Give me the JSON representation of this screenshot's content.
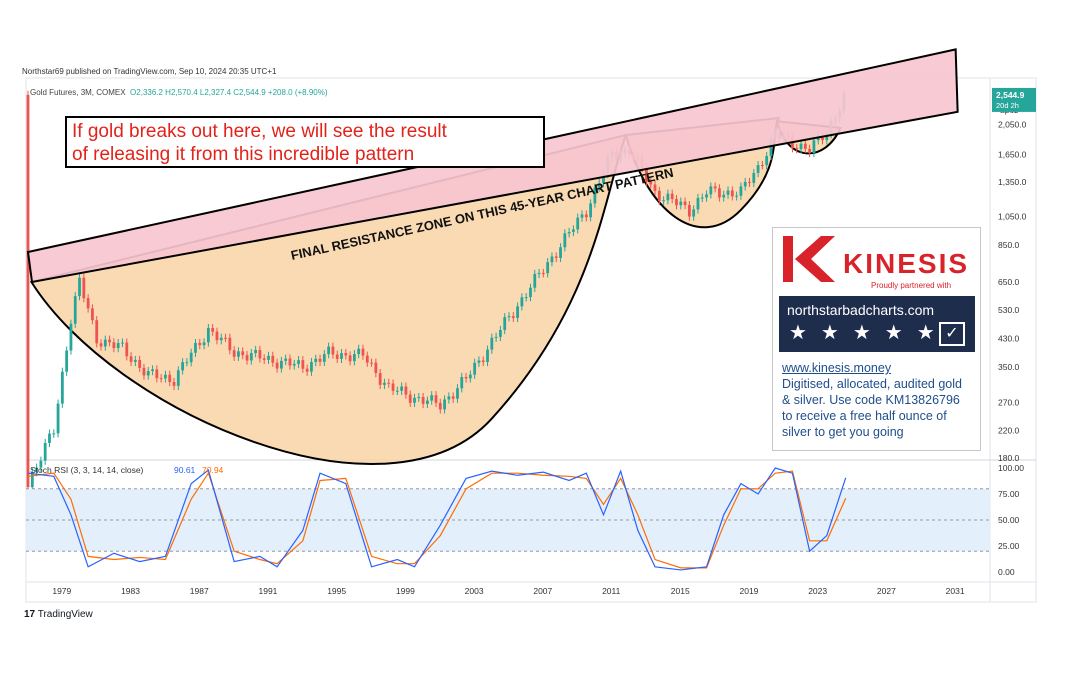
{
  "header": {
    "published": "Northstar69 published on TradingView.com, Sep 10, 2024 20:35 UTC+1",
    "symbol": "Gold Futures, 3M, COMEX",
    "ohlc": "O2,336.2  H2,570.4  L2,327.4  C2,544.9  +208.0 (+8.90%)"
  },
  "footer": {
    "logo_text": "TradingView"
  },
  "sponsor": {
    "brand": "KINESIS",
    "tagline": "Proudly partnered with",
    "site_badge": "northstarbadcharts.com",
    "lines": [
      "www.kinesis.money",
      "Digitised, allocated, audited gold",
      "& silver. Use code KM13826796",
      "to receive a free half ounce of",
      "silver to get you going"
    ]
  },
  "colors": {
    "up": "#26a69a",
    "down": "#ef5350",
    "cup_fill": "#f9d4a4",
    "resistance_fill": "#f7c6cf",
    "rsi_k": "#2962ff",
    "rsi_d": "#ff6d00",
    "rsi_band": "#e3effb",
    "brand_red": "#d8232a",
    "badge_navy": "#1f2d4d"
  },
  "chart_data": [
    {
      "type": "candlestick",
      "scale": "log",
      "currency": "USD",
      "right_axis_top_labels": [
        "USD",
        "apoz"
      ],
      "last_price_label": "2,544.9",
      "countdown_label": "20d 2h",
      "y_ticks": [
        "2,050.0",
        "1,650.0",
        "1,350.0",
        "1,050.0",
        "850.0",
        "650.0",
        "530.0",
        "430.0",
        "350.0",
        "270.0",
        "220.0",
        "180.0"
      ],
      "x_ticks": [
        "1979",
        "1983",
        "1987",
        "1991",
        "1995",
        "1999",
        "2003",
        "2007",
        "2011",
        "2015",
        "2019",
        "2023",
        "2027",
        "2031"
      ],
      "approx_close_path": [
        {
          "year": 1977.0,
          "close": 150
        },
        {
          "year": 1978.5,
          "close": 220
        },
        {
          "year": 1979.5,
          "close": 500
        },
        {
          "year": 1980.0,
          "close": 650
        },
        {
          "year": 1981.0,
          "close": 430
        },
        {
          "year": 1982.5,
          "close": 400
        },
        {
          "year": 1984.0,
          "close": 330
        },
        {
          "year": 1985.5,
          "close": 320
        },
        {
          "year": 1987.5,
          "close": 460
        },
        {
          "year": 1989.0,
          "close": 390
        },
        {
          "year": 1991.0,
          "close": 370
        },
        {
          "year": 1993.0,
          "close": 350
        },
        {
          "year": 1994.5,
          "close": 385
        },
        {
          "year": 1996.5,
          "close": 380
        },
        {
          "year": 1998.0,
          "close": 300
        },
        {
          "year": 1999.5,
          "close": 280
        },
        {
          "year": 2001.0,
          "close": 265
        },
        {
          "year": 2002.5,
          "close": 320
        },
        {
          "year": 2004.0,
          "close": 420
        },
        {
          "year": 2006.0,
          "close": 600
        },
        {
          "year": 2008.0,
          "close": 850
        },
        {
          "year": 2009.5,
          "close": 1100
        },
        {
          "year": 2011.0,
          "close": 1650
        },
        {
          "year": 2012.0,
          "close": 1700
        },
        {
          "year": 2013.5,
          "close": 1250
        },
        {
          "year": 2015.5,
          "close": 1100
        },
        {
          "year": 2016.5,
          "close": 1250
        },
        {
          "year": 2018.5,
          "close": 1250
        },
        {
          "year": 2019.5,
          "close": 1500
        },
        {
          "year": 2020.5,
          "close": 1900
        },
        {
          "year": 2021.5,
          "close": 1800
        },
        {
          "year": 2022.5,
          "close": 1700
        },
        {
          "year": 2023.5,
          "close": 1950
        },
        {
          "year": 2024.6,
          "close": 2545
        }
      ],
      "annotations": {
        "resistance_label": "FINAL RESISTANCE ZONE ON THIS 45-YEAR CHART PATTERN",
        "callout_line1": "If gold breaks out here, we will see the result",
        "callout_line2": "of releasing it from this incredible pattern"
      }
    },
    {
      "type": "line",
      "title": "Stoch RSI (3, 3, 14, 14, close)",
      "k_value": "90.61",
      "d_value": "70.94",
      "y_ticks": [
        "100.00",
        "75.00",
        "50.00",
        "25.00",
        "0.00"
      ],
      "ylim": [
        0,
        100
      ],
      "band": [
        20,
        80
      ],
      "k_series": [
        {
          "year": 1977.0,
          "k": 95
        },
        {
          "year": 1978.5,
          "k": 92
        },
        {
          "year": 1979.5,
          "k": 55
        },
        {
          "year": 1980.5,
          "k": 5
        },
        {
          "year": 1982.0,
          "k": 18
        },
        {
          "year": 1983.5,
          "k": 10
        },
        {
          "year": 1985.0,
          "k": 15
        },
        {
          "year": 1986.5,
          "k": 85
        },
        {
          "year": 1987.5,
          "k": 98
        },
        {
          "year": 1989.0,
          "k": 10
        },
        {
          "year": 1990.5,
          "k": 15
        },
        {
          "year": 1991.5,
          "k": 5
        },
        {
          "year": 1993.0,
          "k": 40
        },
        {
          "year": 1994.0,
          "k": 95
        },
        {
          "year": 1995.5,
          "k": 85
        },
        {
          "year": 1997.0,
          "k": 5
        },
        {
          "year": 1998.5,
          "k": 12
        },
        {
          "year": 1999.5,
          "k": 5
        },
        {
          "year": 2001.0,
          "k": 45
        },
        {
          "year": 2002.5,
          "k": 90
        },
        {
          "year": 2004.0,
          "k": 97
        },
        {
          "year": 2005.5,
          "k": 93
        },
        {
          "year": 2007.0,
          "k": 96
        },
        {
          "year": 2008.5,
          "k": 88
        },
        {
          "year": 2009.5,
          "k": 95
        },
        {
          "year": 2010.5,
          "k": 55
        },
        {
          "year": 2011.5,
          "k": 97
        },
        {
          "year": 2012.5,
          "k": 40
        },
        {
          "year": 2013.5,
          "k": 5
        },
        {
          "year": 2015.0,
          "k": 2
        },
        {
          "year": 2016.5,
          "k": 5
        },
        {
          "year": 2017.5,
          "k": 55
        },
        {
          "year": 2018.5,
          "k": 85
        },
        {
          "year": 2019.5,
          "k": 75
        },
        {
          "year": 2020.5,
          "k": 100
        },
        {
          "year": 2021.5,
          "k": 95
        },
        {
          "year": 2022.5,
          "k": 20
        },
        {
          "year": 2023.5,
          "k": 35
        },
        {
          "year": 2024.6,
          "k": 90.61
        }
      ],
      "d_series": [
        {
          "year": 1977.0,
          "d": 92
        },
        {
          "year": 1978.5,
          "d": 95
        },
        {
          "year": 1979.5,
          "d": 70
        },
        {
          "year": 1980.5,
          "d": 15
        },
        {
          "year": 1982.0,
          "d": 12
        },
        {
          "year": 1983.5,
          "d": 14
        },
        {
          "year": 1985.0,
          "d": 12
        },
        {
          "year": 1986.5,
          "d": 70
        },
        {
          "year": 1987.5,
          "d": 95
        },
        {
          "year": 1989.0,
          "d": 20
        },
        {
          "year": 1990.5,
          "d": 12
        },
        {
          "year": 1991.5,
          "d": 8
        },
        {
          "year": 1993.0,
          "d": 30
        },
        {
          "year": 1994.0,
          "d": 88
        },
        {
          "year": 1995.5,
          "d": 90
        },
        {
          "year": 1997.0,
          "d": 15
        },
        {
          "year": 1998.5,
          "d": 8
        },
        {
          "year": 1999.5,
          "d": 8
        },
        {
          "year": 2001.0,
          "d": 35
        },
        {
          "year": 2002.5,
          "d": 80
        },
        {
          "year": 2004.0,
          "d": 95
        },
        {
          "year": 2005.5,
          "d": 95
        },
        {
          "year": 2007.0,
          "d": 93
        },
        {
          "year": 2008.5,
          "d": 92
        },
        {
          "year": 2009.5,
          "d": 90
        },
        {
          "year": 2010.5,
          "d": 65
        },
        {
          "year": 2011.5,
          "d": 90
        },
        {
          "year": 2012.5,
          "d": 55
        },
        {
          "year": 2013.5,
          "d": 12
        },
        {
          "year": 2015.0,
          "d": 4
        },
        {
          "year": 2016.5,
          "d": 4
        },
        {
          "year": 2017.5,
          "d": 45
        },
        {
          "year": 2018.5,
          "d": 80
        },
        {
          "year": 2019.5,
          "d": 80
        },
        {
          "year": 2020.5,
          "d": 95
        },
        {
          "year": 2021.5,
          "d": 97
        },
        {
          "year": 2022.5,
          "d": 30
        },
        {
          "year": 2023.5,
          "d": 30
        },
        {
          "year": 2024.6,
          "d": 70.94
        }
      ]
    }
  ]
}
